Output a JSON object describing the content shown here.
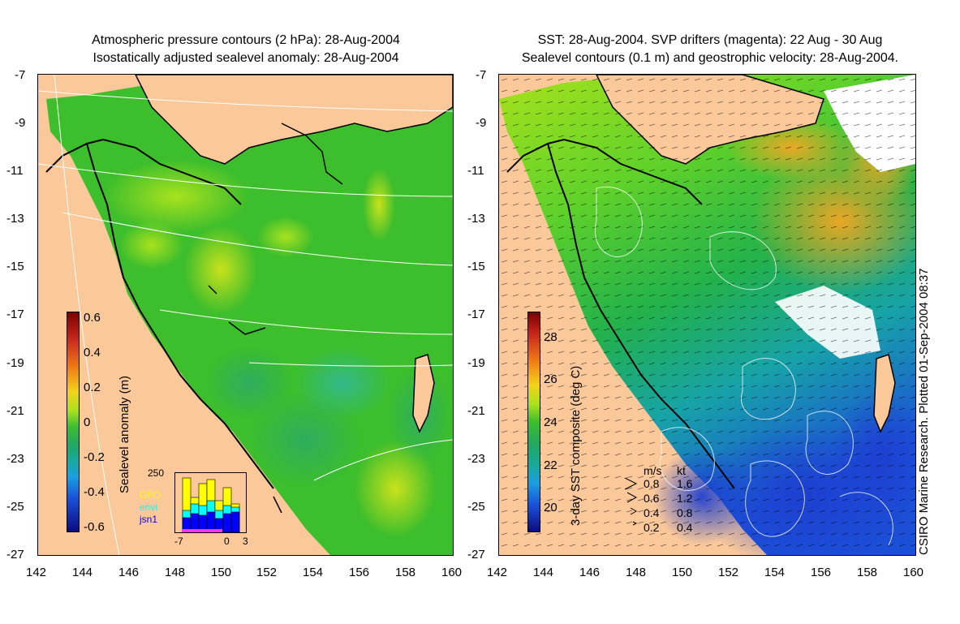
{
  "left_panel": {
    "title_line1": "Atmospheric pressure contours (2 hPa): 28-Aug-2004",
    "title_line2": "Isostatically adjusted sealevel anomaly: 28-Aug-2004",
    "colorbar": {
      "label": "Sealevel anomaly (m)",
      "ticks": [
        "0.6",
        "0.4",
        "0.2",
        "0",
        "-0.2",
        "-0.4",
        "-0.6"
      ]
    },
    "inset": {
      "ymax_label": "250",
      "x_ticks": [
        "-7",
        "0",
        "3"
      ],
      "legend": [
        {
          "name": "GFO",
          "color": "#ffff00"
        },
        {
          "name": "envi",
          "color": "#00ffff"
        },
        {
          "name": "jsn1",
          "color": "#0000ff"
        }
      ]
    }
  },
  "right_panel": {
    "title_line1": "SST: 28-Aug-2004. SVP drifters (magenta): 22 Aug - 30 Aug",
    "title_line2": "Sealevel contours (0.1 m) and geostrophic velocity: 28-Aug-2004.",
    "colorbar": {
      "label": "3-day SST composite (deg C)",
      "ticks": [
        "28",
        "26",
        "24",
        "22",
        "20"
      ]
    },
    "velocity_legend": {
      "headers": [
        "m/s",
        "kt"
      ],
      "rows": [
        {
          "ms": "0.8",
          "kt": "1.6"
        },
        {
          "ms": "0.6",
          "kt": "1.2"
        },
        {
          "ms": "0.4",
          "kt": "0.8"
        },
        {
          "ms": "0.2",
          "kt": "0.4"
        }
      ]
    }
  },
  "axes": {
    "lat_ticks": [
      "-7",
      "-9",
      "-11",
      "-13",
      "-15",
      "-17",
      "-19",
      "-21",
      "-23",
      "-25",
      "-27"
    ],
    "lon_ticks": [
      "142",
      "144",
      "146",
      "148",
      "150",
      "152",
      "154",
      "156",
      "158",
      "160"
    ]
  },
  "credit": "CSIRO Marine Research. Plotted 01-Sep-2004 08:37",
  "colors": {
    "land": "#fbc89a",
    "sla_ocean": "#3dbe2c",
    "sst_ocean": "#22b14c"
  }
}
